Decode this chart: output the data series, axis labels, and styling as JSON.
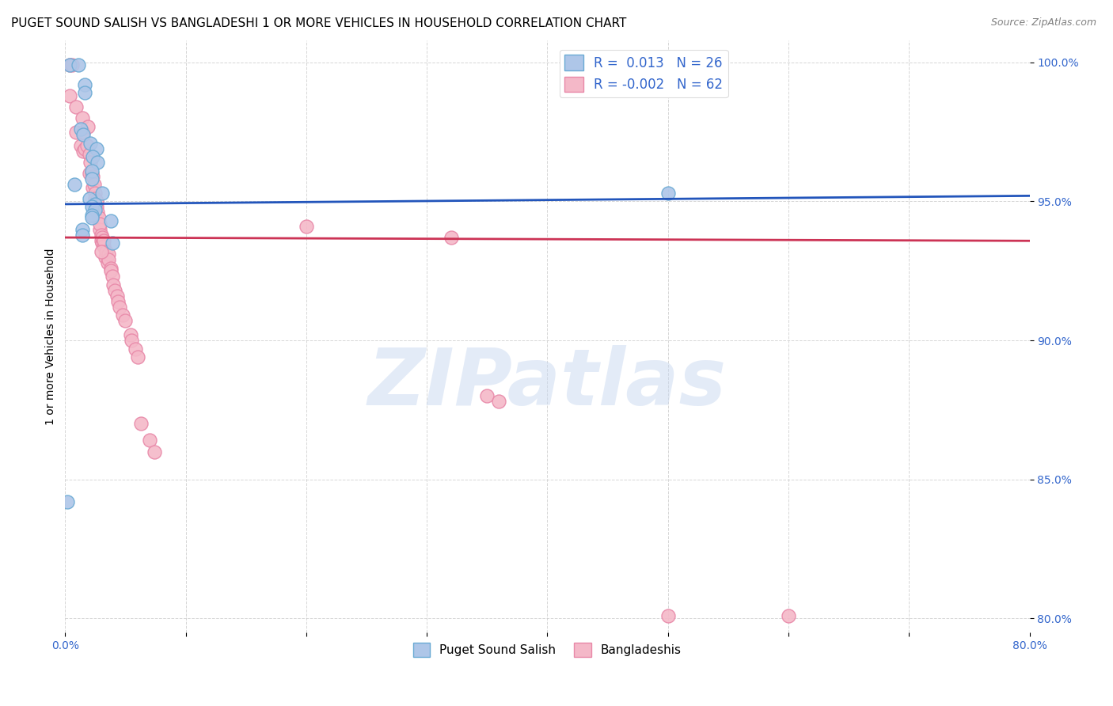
{
  "title": "PUGET SOUND SALISH VS BANGLADESHI 1 OR MORE VEHICLES IN HOUSEHOLD CORRELATION CHART",
  "source": "Source: ZipAtlas.com",
  "ylabel": "1 or more Vehicles in Household",
  "xlim": [
    0.0,
    0.8
  ],
  "ylim": [
    0.795,
    1.008
  ],
  "xticks": [
    0.0,
    0.1,
    0.2,
    0.3,
    0.4,
    0.5,
    0.6,
    0.7,
    0.8
  ],
  "xticklabels": [
    "0.0%",
    "",
    "",
    "",
    "",
    "",
    "",
    "",
    "80.0%"
  ],
  "yticks": [
    0.8,
    0.85,
    0.9,
    0.95,
    1.0
  ],
  "yticklabels": [
    "80.0%",
    "85.0%",
    "90.0%",
    "95.0%",
    "100.0%"
  ],
  "legend_labels": [
    "Puget Sound Salish",
    "Bangladeshis"
  ],
  "legend_r": [
    "R =  0.013",
    "R = -0.002"
  ],
  "legend_n": [
    "N = 26",
    "N = 62"
  ],
  "blue_color": "#aec6e8",
  "pink_color": "#f4b8c8",
  "blue_edge": "#6aaad4",
  "pink_edge": "#e888a8",
  "trend_blue": "#2255bb",
  "trend_pink": "#cc3355",
  "watermark": "ZIPatlas",
  "watermark_color": "#c8d8f0",
  "blue_scatter_x": [
    0.004,
    0.011,
    0.016,
    0.016,
    0.013,
    0.015,
    0.021,
    0.026,
    0.023,
    0.027,
    0.022,
    0.022,
    0.008,
    0.031,
    0.02,
    0.025,
    0.022,
    0.025,
    0.022,
    0.022,
    0.038,
    0.014,
    0.014,
    0.039,
    0.5,
    0.002
  ],
  "blue_scatter_y": [
    0.999,
    0.999,
    0.992,
    0.989,
    0.976,
    0.974,
    0.971,
    0.969,
    0.966,
    0.964,
    0.961,
    0.958,
    0.956,
    0.953,
    0.951,
    0.949,
    0.948,
    0.947,
    0.945,
    0.944,
    0.943,
    0.94,
    0.938,
    0.935,
    0.953,
    0.842
  ],
  "pink_scatter_x": [
    0.004,
    0.006,
    0.009,
    0.013,
    0.015,
    0.015,
    0.016,
    0.018,
    0.02,
    0.02,
    0.021,
    0.022,
    0.023,
    0.023,
    0.024,
    0.025,
    0.025,
    0.026,
    0.026,
    0.027,
    0.028,
    0.029,
    0.029,
    0.03,
    0.03,
    0.031,
    0.031,
    0.032,
    0.032,
    0.033,
    0.034,
    0.035,
    0.036,
    0.036,
    0.038,
    0.038,
    0.039,
    0.04,
    0.041,
    0.043,
    0.044,
    0.045,
    0.048,
    0.05,
    0.054,
    0.055,
    0.058,
    0.06,
    0.063,
    0.07,
    0.074,
    0.2,
    0.32,
    0.35,
    0.36,
    0.5,
    0.6,
    0.004,
    0.009,
    0.014,
    0.019,
    0.03
  ],
  "pink_scatter_y": [
    0.999,
    0.999,
    0.975,
    0.97,
    0.968,
    0.975,
    0.969,
    0.97,
    0.967,
    0.96,
    0.964,
    0.96,
    0.959,
    0.955,
    0.956,
    0.953,
    0.951,
    0.948,
    0.95,
    0.946,
    0.944,
    0.94,
    0.942,
    0.938,
    0.936,
    0.935,
    0.937,
    0.934,
    0.936,
    0.93,
    0.932,
    0.928,
    0.931,
    0.929,
    0.926,
    0.925,
    0.923,
    0.92,
    0.918,
    0.916,
    0.914,
    0.912,
    0.909,
    0.907,
    0.902,
    0.9,
    0.897,
    0.894,
    0.87,
    0.864,
    0.86,
    0.941,
    0.937,
    0.88,
    0.878,
    0.801,
    0.801,
    0.988,
    0.984,
    0.98,
    0.977,
    0.932
  ],
  "blue_trendline_x": [
    0.0,
    0.8
  ],
  "blue_trendline_y": [
    0.949,
    0.952
  ],
  "pink_trendline_x": [
    0.0,
    0.8
  ],
  "pink_trendline_y": [
    0.937,
    0.9358
  ],
  "marker_size": 150,
  "title_fontsize": 11,
  "axis_label_fontsize": 10,
  "tick_fontsize": 10,
  "legend_fontsize": 12,
  "source_fontsize": 9
}
